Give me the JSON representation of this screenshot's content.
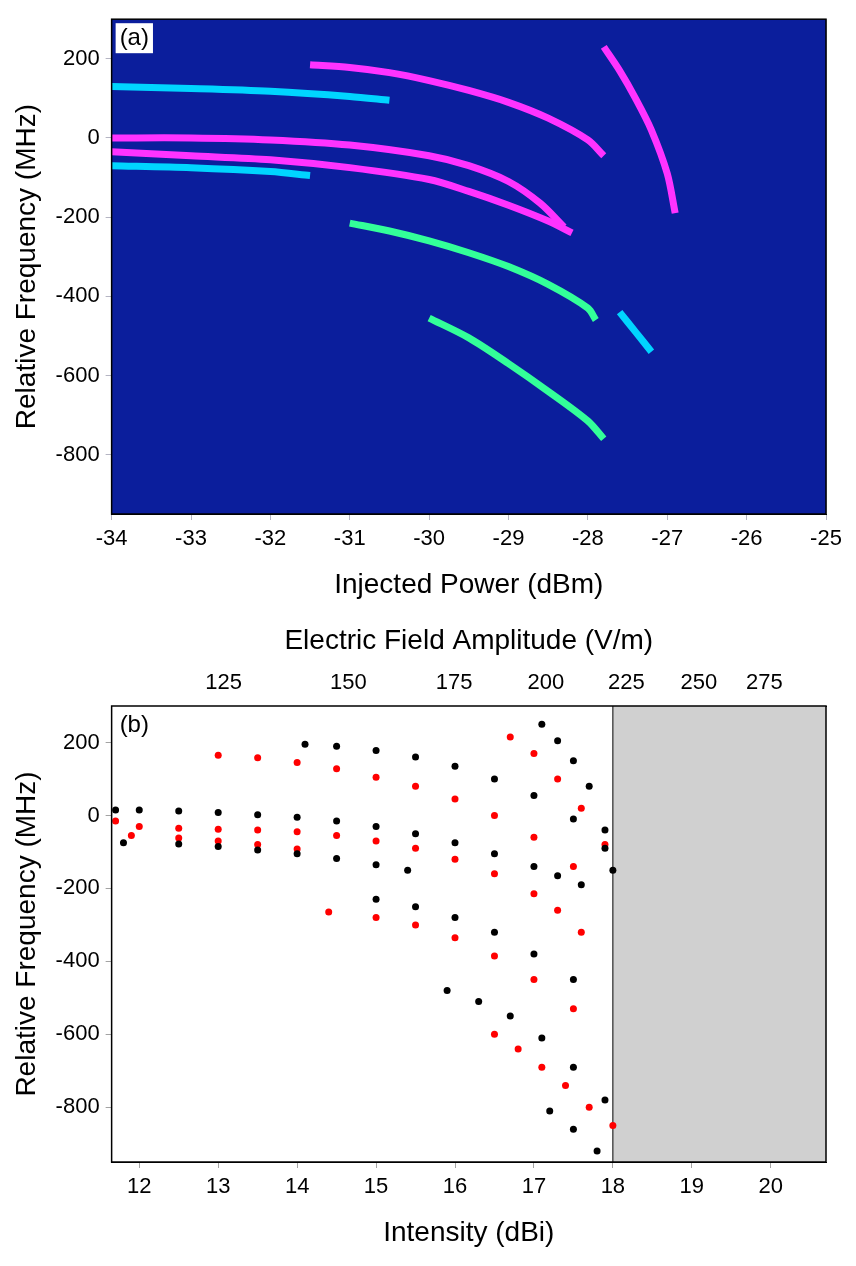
{
  "chart_data": [
    {
      "type": "line",
      "panel": "(a)",
      "x_label": "Injected Power (dBm)",
      "y_label": "Relative Frequency (MHz)",
      "xlim": [
        -34,
        -25
      ],
      "xticks": [
        -34,
        -33,
        -32,
        -31,
        -30,
        -29,
        -28,
        -27,
        -26,
        -25
      ],
      "ylim": [
        -950,
        300
      ],
      "yticks": [
        -800,
        -600,
        -400,
        -200,
        0,
        200
      ],
      "grid": true,
      "series": [
        {
          "color": "#ff33ff",
          "marker": "none",
          "line_style": "solid",
          "x": [
            -34,
            -33,
            -32,
            -31,
            -30,
            -29.5,
            -29,
            -28.6,
            -28.3
          ],
          "values": [
            0,
            0,
            -5,
            -18,
            -45,
            -70,
            -110,
            -165,
            -225
          ]
        },
        {
          "color": "#ff33ff",
          "marker": "none",
          "line_style": "solid",
          "x": [
            -34,
            -33.5,
            -33,
            -32,
            -31,
            -30,
            -29.5,
            -29,
            -28.5,
            -28.2
          ],
          "values": [
            -35,
            -40,
            -45,
            -55,
            -75,
            -105,
            -135,
            -170,
            -210,
            -240
          ]
        },
        {
          "color": "#ff33ff",
          "marker": "none",
          "line_style": "solid",
          "x": [
            -31.5,
            -31,
            -30.5,
            -30,
            -29.5,
            -29,
            -28.5,
            -28,
            -27.8
          ],
          "values": [
            185,
            178,
            165,
            145,
            120,
            90,
            50,
            -5,
            -45
          ]
        },
        {
          "color": "#ff33ff",
          "marker": "none",
          "line_style": "solid",
          "x": [
            -27.8,
            -27.6,
            -27.4,
            -27.2,
            -27,
            -26.9
          ],
          "values": [
            230,
            170,
            100,
            20,
            -90,
            -190
          ]
        },
        {
          "color": "#00d5ff",
          "marker": "none",
          "line_style": "solid",
          "x": [
            -34,
            -33,
            -32,
            -31,
            -30.5
          ],
          "values": [
            130,
            125,
            118,
            105,
            95
          ]
        },
        {
          "color": "#33ff99",
          "marker": "none",
          "line_style": "solid",
          "x": [
            -31,
            -30.5,
            -30,
            -29.5,
            -29,
            -28.5,
            -28,
            -27.9
          ],
          "values": [
            -215,
            -235,
            -260,
            -290,
            -325,
            -370,
            -430,
            -460
          ]
        },
        {
          "color": "#33ff99",
          "marker": "none",
          "line_style": "solid",
          "x": [
            -30,
            -29.5,
            -29,
            -28.5,
            -28,
            -27.8
          ],
          "values": [
            -455,
            -505,
            -570,
            -640,
            -715,
            -760
          ]
        },
        {
          "color": "#00d5ff",
          "marker": "none",
          "line_style": "solid",
          "x": [
            -34,
            -33,
            -32,
            -31.5
          ],
          "values": [
            -70,
            -75,
            -85,
            -95
          ]
        },
        {
          "color": "#00d5ff",
          "marker": "none",
          "line_style": "solid",
          "x": [
            -27.6,
            -27.4,
            -27.2
          ],
          "values": [
            -440,
            -490,
            -540
          ]
        }
      ]
    },
    {
      "type": "scatter",
      "panel": "(b)",
      "x_label": "Intensity (dBi)",
      "y_label": "Relative Frequency (MHz)",
      "x2_label": "Electric Field Amplitude (V/m)",
      "xlim": [
        11.65,
        20.7
      ],
      "xticks": [
        12,
        13,
        14,
        15,
        16,
        17,
        18,
        19,
        20
      ],
      "x2ticks": [
        {
          "value": 13.07,
          "label": "125"
        },
        {
          "value": 14.65,
          "label": "150"
        },
        {
          "value": 15.99,
          "label": "175"
        },
        {
          "value": 17.15,
          "label": "200"
        },
        {
          "value": 18.17,
          "label": "225"
        },
        {
          "value": 19.09,
          "label": "250"
        },
        {
          "value": 19.92,
          "label": "275"
        }
      ],
      "ylim": [
        -950,
        300
      ],
      "yticks": [
        -800,
        -600,
        -400,
        -200,
        0,
        200
      ],
      "shaded_xrange": [
        18,
        20.7
      ],
      "grid": true,
      "series": [
        {
          "color": "#000000",
          "marker": "circle",
          "line_style": "none",
          "x": [
            11.7,
            12,
            12.5,
            13,
            13.5,
            14,
            14.5,
            15,
            15.5,
            16,
            16.5,
            17,
            17.3,
            17.6
          ],
          "values": [
            15,
            15,
            12,
            8,
            2,
            -5,
            -15,
            -30,
            -50,
            -75,
            -105,
            -140,
            -165,
            -190
          ]
        },
        {
          "color": "#000000",
          "marker": "circle",
          "line_style": "none",
          "x": [
            14.1,
            14.5,
            15,
            15.5,
            16,
            16.5,
            17,
            17.5,
            17.9
          ],
          "values": [
            195,
            190,
            178,
            160,
            135,
            100,
            55,
            -10,
            -90
          ]
        },
        {
          "color": "#000000",
          "marker": "circle",
          "line_style": "none",
          "x": [
            17.1,
            17.3,
            17.5,
            17.7,
            17.9,
            18
          ],
          "values": [
            250,
            205,
            150,
            80,
            -40,
            -150
          ]
        },
        {
          "color": "#000000",
          "marker": "circle",
          "line_style": "none",
          "x": [
            15,
            15.5,
            16,
            16.5,
            17,
            17.5
          ],
          "values": [
            -230,
            -250,
            -280,
            -320,
            -380,
            -450
          ]
        },
        {
          "color": "#000000",
          "marker": "circle",
          "line_style": "none",
          "x": [
            15.9,
            16.3,
            16.7,
            17.1,
            17.5,
            17.9
          ],
          "values": [
            -480,
            -510,
            -550,
            -610,
            -690,
            -780
          ]
        },
        {
          "color": "#000000",
          "marker": "circle",
          "line_style": "none",
          "x": [
            17.2,
            17.5,
            17.8
          ],
          "values": [
            -810,
            -860,
            -920
          ]
        },
        {
          "color": "#000000",
          "marker": "circle",
          "line_style": "none",
          "x": [
            11.8,
            12.5,
            13,
            13.5,
            14,
            14.5,
            15,
            15.4
          ],
          "values": [
            -75,
            -78,
            -85,
            -95,
            -105,
            -118,
            -135,
            -150
          ]
        },
        {
          "color": "#ff0000",
          "marker": "circle",
          "line_style": "none",
          "x": [
            11.7,
            12,
            12.5,
            13,
            13.5,
            14,
            14.5,
            15,
            15.5,
            16,
            16.5,
            17,
            17.3,
            17.6
          ],
          "values": [
            -15,
            -30,
            -35,
            -38,
            -40,
            -45,
            -55,
            -70,
            -90,
            -120,
            -160,
            -215,
            -260,
            -320
          ]
        },
        {
          "color": "#ff0000",
          "marker": "circle",
          "line_style": "none",
          "x": [
            13,
            13.5,
            14,
            14.5,
            15,
            15.5,
            16,
            16.5,
            17,
            17.5
          ],
          "values": [
            165,
            158,
            145,
            128,
            105,
            80,
            45,
            0,
            -60,
            -140
          ]
        },
        {
          "color": "#ff0000",
          "marker": "circle",
          "line_style": "none",
          "x": [
            16.7,
            17,
            17.3,
            17.6,
            17.9
          ],
          "values": [
            215,
            170,
            100,
            20,
            -80
          ]
        },
        {
          "color": "#ff0000",
          "marker": "circle",
          "line_style": "none",
          "x": [
            14.4,
            15,
            15.5,
            16,
            16.5,
            17,
            17.5
          ],
          "values": [
            -265,
            -280,
            -300,
            -335,
            -385,
            -450,
            -530
          ]
        },
        {
          "color": "#ff0000",
          "marker": "circle",
          "line_style": "none",
          "x": [
            16.5,
            16.8,
            17.1,
            17.4,
            17.7,
            18
          ],
          "values": [
            -600,
            -640,
            -690,
            -740,
            -800,
            -850
          ]
        },
        {
          "color": "#ff0000",
          "marker": "circle",
          "line_style": "none",
          "x": [
            11.9,
            12.5,
            13,
            13.5,
            14
          ],
          "values": [
            -55,
            -62,
            -70,
            -80,
            -92
          ]
        }
      ]
    }
  ]
}
